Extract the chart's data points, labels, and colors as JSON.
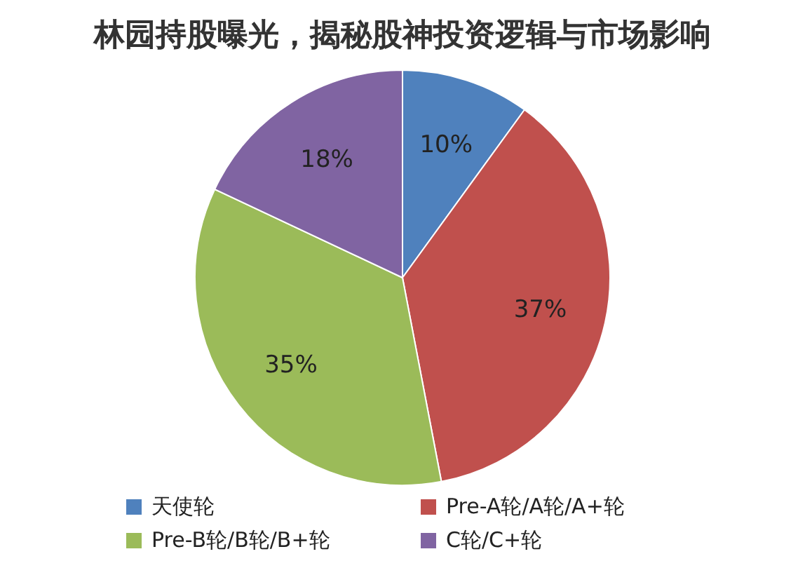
{
  "chart_data": {
    "type": "pie",
    "title": "林园持股曝光，揭秘股神投资逻辑与市场影响",
    "categories": [
      "天使轮",
      "Pre-A轮/A轮/A+轮",
      "Pre-B轮/B轮/B+轮",
      "C轮/C+轮"
    ],
    "values": [
      10,
      37,
      35,
      18
    ],
    "colors": [
      "#4f81bd",
      "#c0504d",
      "#9bbb59",
      "#8064a2"
    ],
    "value_labels": [
      "10%",
      "37%",
      "35%",
      "18%"
    ],
    "legend": "bottom"
  }
}
